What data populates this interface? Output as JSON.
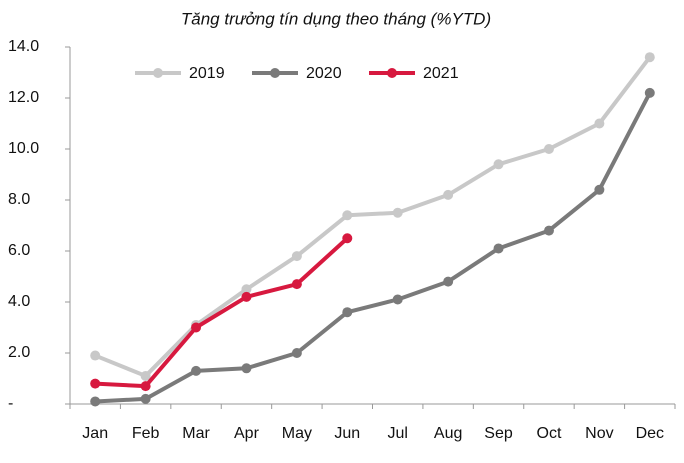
{
  "chart_data": {
    "type": "line",
    "title": "Tăng trưởng tín dụng theo tháng (%YTD)",
    "categories": [
      "Jan",
      "Feb",
      "Mar",
      "Apr",
      "May",
      "Jun",
      "Jul",
      "Aug",
      "Sep",
      "Oct",
      "Nov",
      "Dec"
    ],
    "series": [
      {
        "name": "2019",
        "color": "#c8c8c8",
        "values": [
          1.9,
          1.1,
          3.1,
          4.5,
          5.8,
          7.4,
          7.5,
          8.2,
          9.4,
          10.0,
          11.0,
          13.6
        ]
      },
      {
        "name": "2020",
        "color": "#7a7a7a",
        "values": [
          0.1,
          0.2,
          1.3,
          1.4,
          2.0,
          3.6,
          4.1,
          4.8,
          6.1,
          6.8,
          8.4,
          12.2
        ]
      },
      {
        "name": "2021",
        "color": "#d7193f",
        "values": [
          0.8,
          0.7,
          3.0,
          4.2,
          4.7,
          6.5,
          null,
          null,
          null,
          null,
          null,
          null
        ]
      }
    ],
    "ylim": [
      0,
      14
    ],
    "yticks": [
      {
        "value": 0,
        "label": "-"
      },
      {
        "value": 2,
        "label": "2.0"
      },
      {
        "value": 4,
        "label": "4.0"
      },
      {
        "value": 6,
        "label": "6.0"
      },
      {
        "value": 8,
        "label": "8.0"
      },
      {
        "value": 10,
        "label": "10.0"
      },
      {
        "value": 12,
        "label": "12.0"
      },
      {
        "value": 14,
        "label": "14.0"
      }
    ],
    "legend": "top"
  }
}
